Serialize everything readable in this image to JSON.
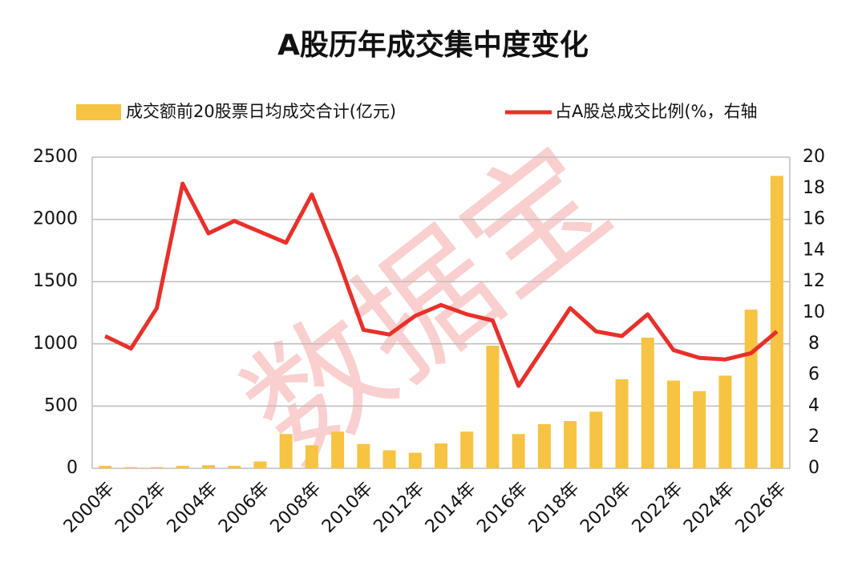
{
  "chart_data": {
    "type": "combo",
    "title": "A股历年成交集中度变化",
    "watermark": "数据宝",
    "categories": [
      "2000年",
      null,
      "2002年",
      null,
      "2004年",
      null,
      "2006年",
      null,
      "2008年",
      null,
      "2010年",
      null,
      "2012年",
      null,
      "2014年",
      null,
      "2016年",
      null,
      "2018年",
      null,
      "2020年",
      null,
      "2022年",
      null,
      "2024年",
      null,
      "2026年"
    ],
    "series": [
      {
        "name": "成交额前20股票日均成交合计(亿元)",
        "type": "bar",
        "color": "#f6c342",
        "values": [
          20,
          10,
          10,
          20,
          25,
          20,
          55,
          275,
          185,
          295,
          195,
          145,
          125,
          200,
          295,
          985,
          275,
          355,
          380,
          455,
          715,
          1050,
          705,
          620,
          745,
          1275,
          2350
        ]
      },
      {
        "name": "占A股总成交比例(%，右轴",
        "type": "line",
        "axis": "y2",
        "color": "#e8302a",
        "values": [
          8.5,
          7.7,
          10.3,
          18.3,
          15.1,
          15.9,
          15.2,
          14.5,
          17.6,
          13.5,
          8.9,
          8.6,
          9.8,
          10.5,
          9.9,
          9.5,
          5.3,
          7.8,
          10.3,
          8.8,
          8.5,
          9.9,
          7.6,
          7.1,
          7.0,
          7.4,
          8.8
        ]
      }
    ],
    "ylim": [
      0,
      2500
    ],
    "yticks": [
      0,
      500,
      1000,
      1500,
      2000,
      2500
    ],
    "y2lim": [
      0,
      20
    ],
    "y2ticks": [
      0,
      2,
      4,
      6,
      8,
      10,
      12,
      14,
      16,
      18,
      20
    ],
    "grid": true
  }
}
